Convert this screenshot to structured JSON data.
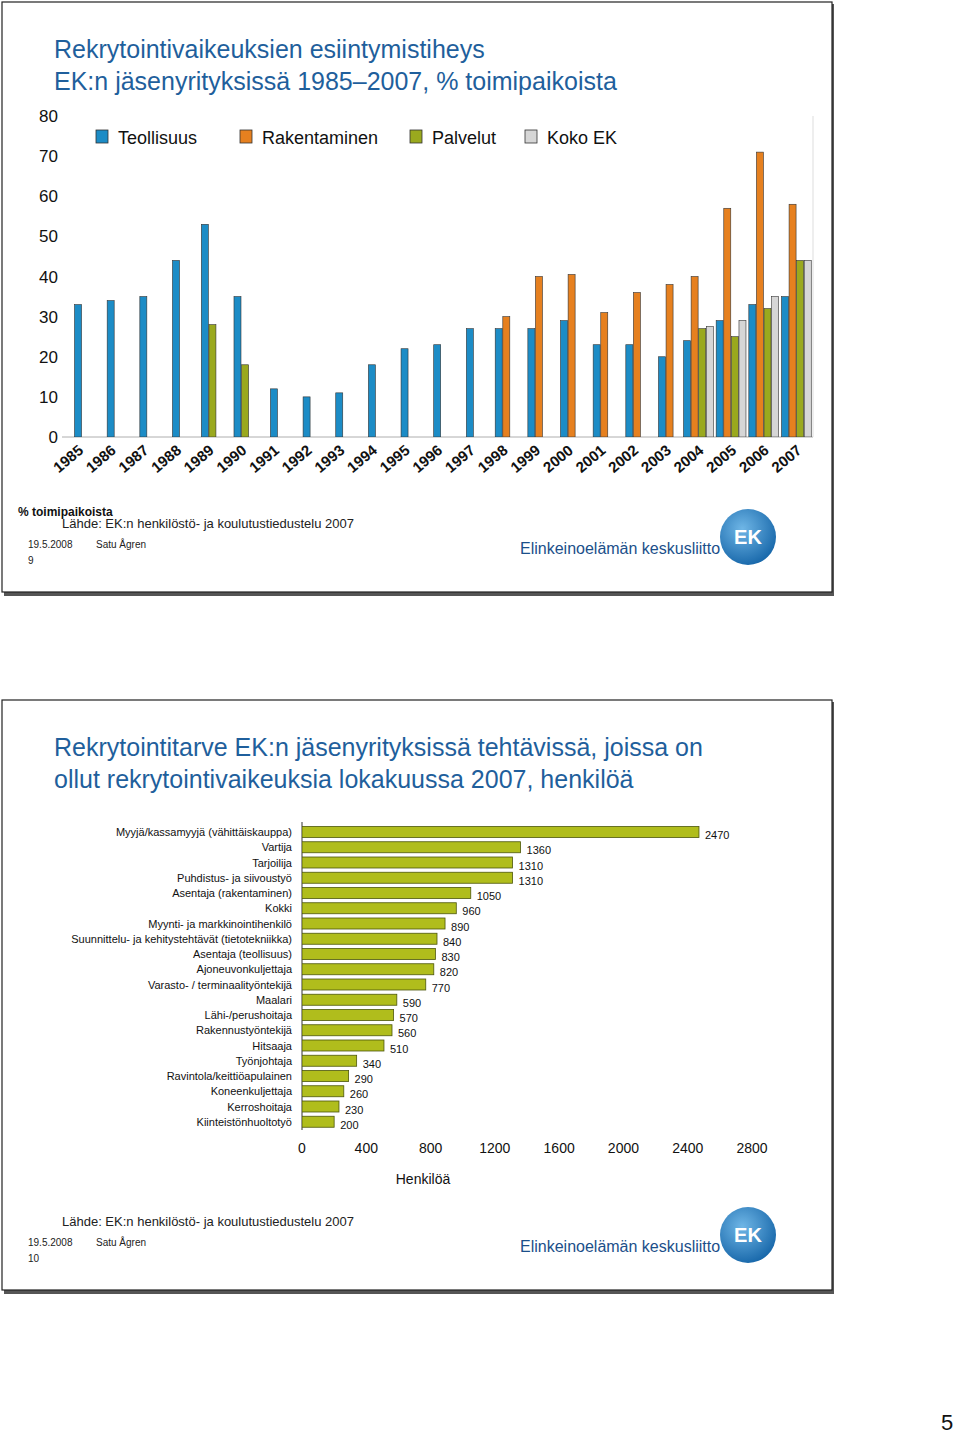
{
  "chart_data": [
    {
      "type": "bar",
      "title": [
        "Rekrytointivaikeuksien esiintymistiheys",
        "EK:n jäsenyrityksissä 1985–2007, % toimipaikoista"
      ],
      "y_label": "% toimipaikoista",
      "categories": [
        "1985",
        "1986",
        "1987",
        "1988",
        "1989",
        "1990",
        "1991",
        "1992",
        "1993",
        "1994",
        "1995",
        "1996",
        "1997",
        "1998",
        "1999",
        "2000",
        "2001",
        "2002",
        "2003",
        "2004",
        "2005",
        "2006",
        "2007"
      ],
      "series": [
        {
          "name": "Teollisuus",
          "color": "#1c8cc6",
          "values": [
            33,
            34,
            35,
            44,
            53,
            35,
            12,
            10,
            11,
            18,
            22,
            23,
            27,
            27,
            27,
            29,
            23,
            23,
            20,
            24,
            29,
            33,
            35
          ]
        },
        {
          "name": "Rakentaminen",
          "color": "#e6801f",
          "values": [
            null,
            null,
            null,
            null,
            null,
            null,
            null,
            null,
            null,
            null,
            null,
            null,
            null,
            30,
            40,
            40.5,
            31,
            36,
            38,
            40,
            57,
            71,
            58
          ]
        },
        {
          "name": "Palvelut",
          "color": "#9aa91e",
          "values": [
            null,
            null,
            null,
            null,
            28,
            18,
            null,
            null,
            null,
            null,
            null,
            null,
            null,
            null,
            null,
            null,
            null,
            null,
            null,
            27,
            25,
            32,
            44
          ]
        },
        {
          "name": "Koko EK",
          "color": "#d6d6d6",
          "values": [
            null,
            null,
            null,
            null,
            null,
            null,
            null,
            null,
            null,
            null,
            null,
            null,
            null,
            null,
            null,
            null,
            null,
            null,
            null,
            27.5,
            29,
            35,
            44
          ]
        }
      ],
      "ylim": [
        0,
        80
      ],
      "yticks": [
        0,
        10,
        20,
        30,
        40,
        50,
        60,
        70,
        80
      ],
      "grid": false,
      "legend": "top"
    },
    {
      "type": "bar",
      "title": [
        "Rekrytointitarve EK:n jäsenyrityksissä tehtävissä, joissa on",
        "ollut rekrytointivaikeuksia lokakuussa 2007, henkilöä"
      ],
      "x_label": "Henkilöä",
      "orientation": "horizontal",
      "categories": [
        "Myyjä/kassamyyjä (vähittäiskauppa)",
        "Vartija",
        "Tarjoilija",
        "Puhdistus- ja siivoustyö",
        "Asentaja (rakentaminen)",
        "Kokki",
        "Myynti- ja markkinointihenkilö",
        "Suunnittelu- ja kehitystehtävät (tietotekniikka)",
        "Asentaja (teollisuus)",
        "Ajoneuvonkuljettaja",
        "Varasto- / terminaalityöntekijä",
        "Maalari",
        "Lähi-/perushoitaja",
        "Rakennustyöntekijä",
        "Hitsaaja",
        "Työnjohtaja",
        "Ravintola/keittiöapulainen",
        "Koneenkuljettaja",
        "Kerroshoitaja",
        "Kiinteistönhuoltotyö"
      ],
      "values": [
        2470,
        1360,
        1310,
        1310,
        1050,
        960,
        890,
        840,
        830,
        820,
        770,
        590,
        570,
        560,
        510,
        340,
        290,
        260,
        230,
        200
      ],
      "color": "#b0bd1c",
      "xlim": [
        0,
        2800
      ],
      "xticks": [
        0,
        400,
        800,
        1200,
        1600,
        2000,
        2400,
        2800
      ],
      "grid": false,
      "data_labels": true
    }
  ],
  "slides": [
    {
      "source": "Lähde: EK:n henkilöstö- ja koulutustiedustelu 2007",
      "date": "19.5.2008",
      "author": "Satu Ågren",
      "page": 9
    },
    {
      "source": "Lähde: EK:n henkilöstö- ja koulutustiedustelu 2007",
      "date": "19.5.2008",
      "author": "Satu Ågren",
      "page": 10
    }
  ],
  "organization": "Elinkeinoelämän keskusliitto",
  "logo": "EK",
  "page_number": 5
}
